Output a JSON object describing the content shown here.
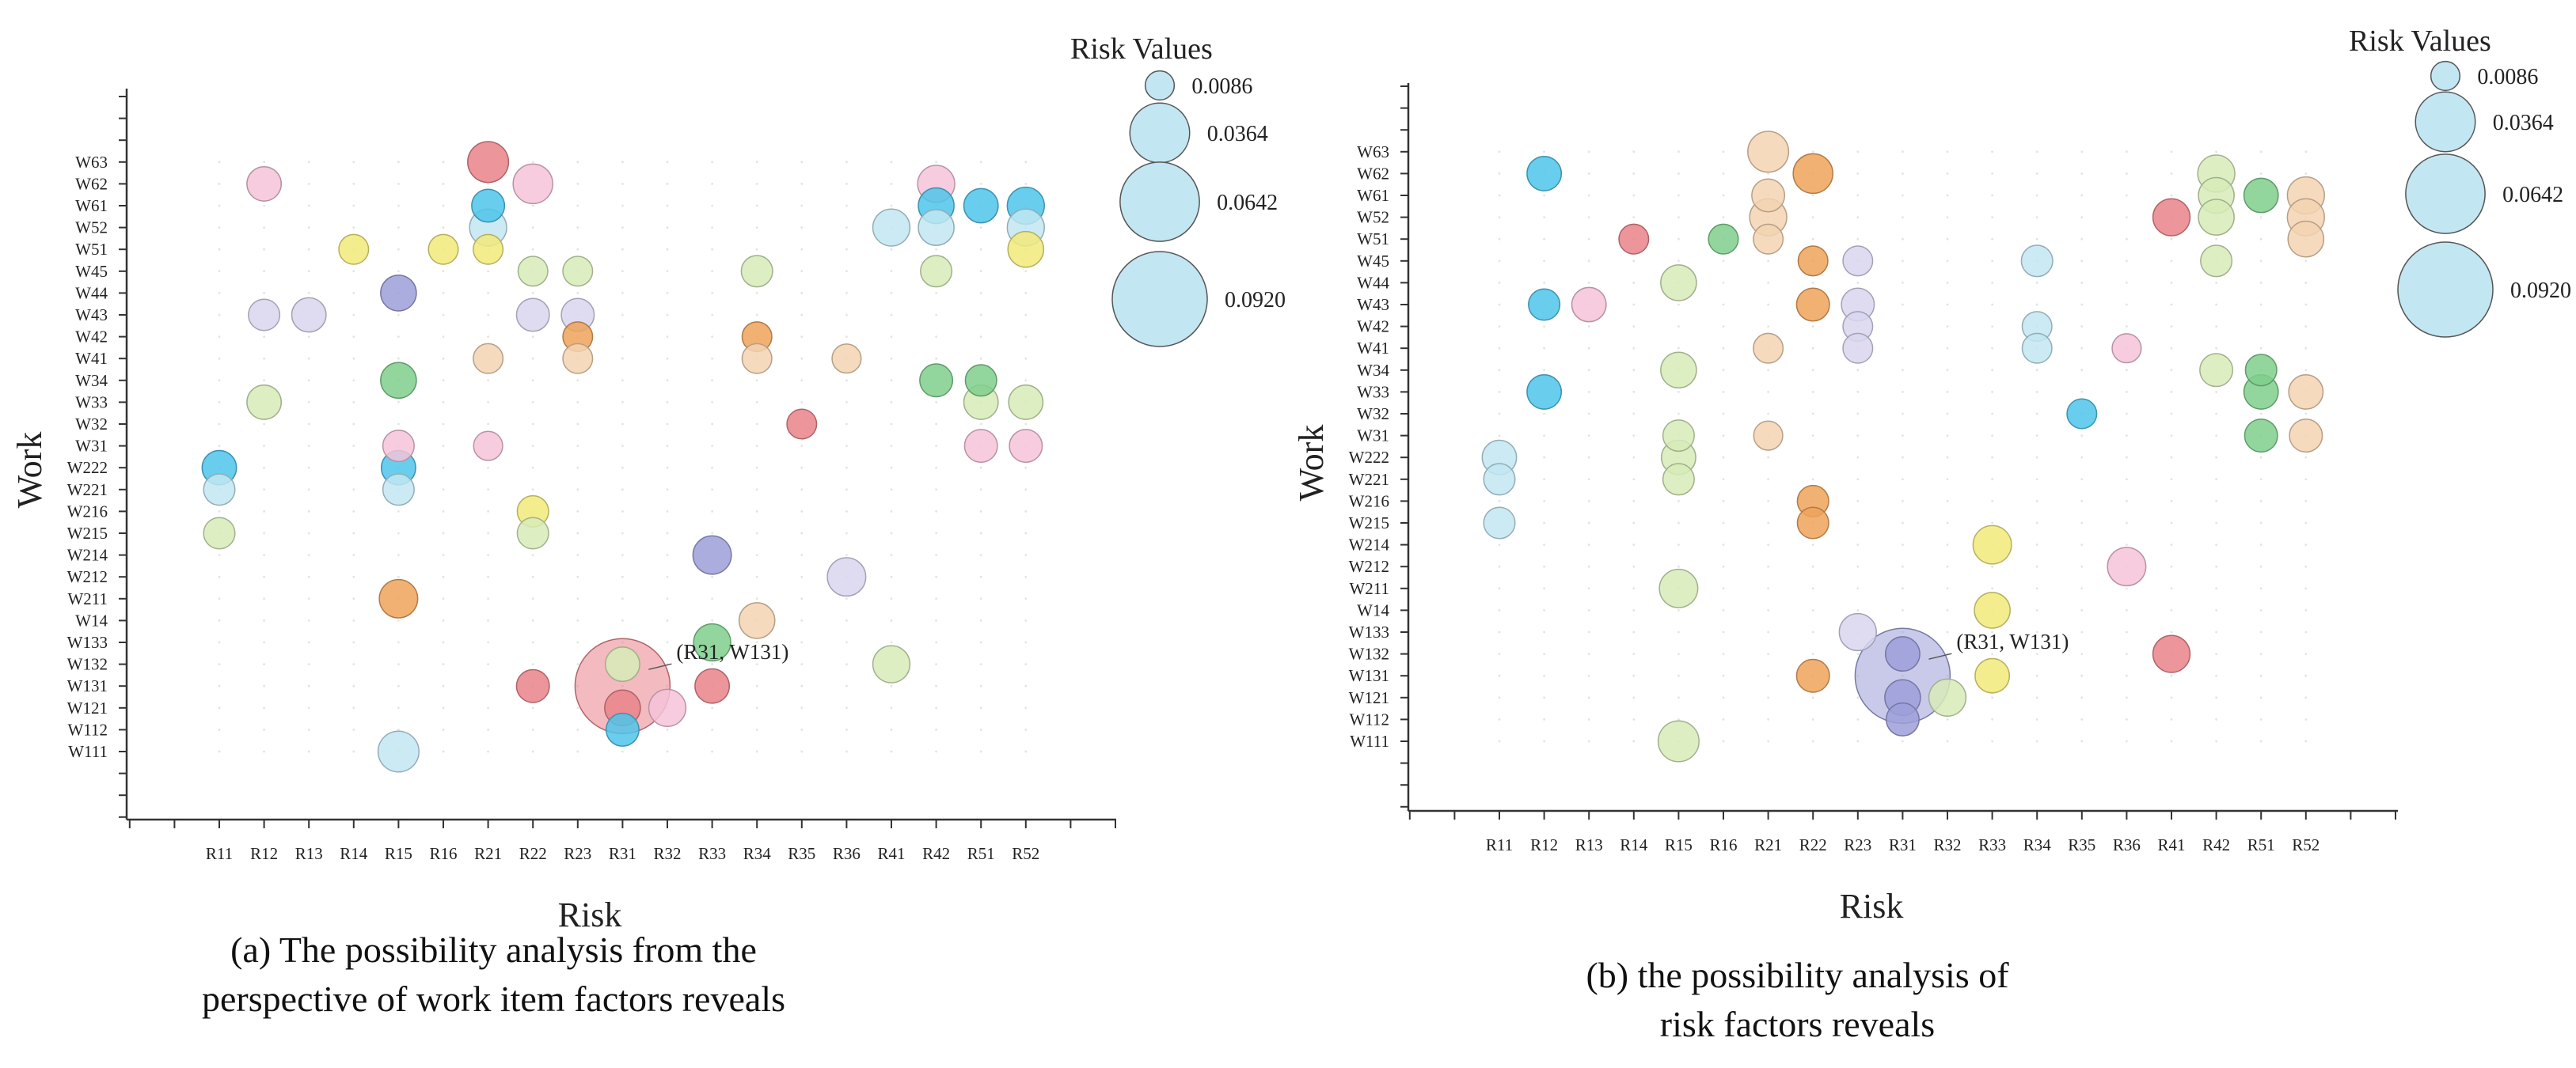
{
  "panels": [
    {
      "id": "a",
      "caption": {
        "line1": "(a) The possibility analysis from the",
        "line2": "perspective of work item factors reveals"
      },
      "annotation": "(R31, W131)"
    },
    {
      "id": "b",
      "caption": {
        "line1": "(b) the possibility analysis of",
        "line2": "risk factors reveals"
      },
      "annotation": "(R31, W131)"
    }
  ],
  "chart_data": [
    {
      "type": "scatter",
      "subtype": "bubble",
      "xlabel": "Risk",
      "ylabel": "Work",
      "legend_title": "Risk Values",
      "legend_sizes": [
        0.0086,
        0.0364,
        0.0642,
        0.092
      ],
      "legend_position": "top-right",
      "grid": false,
      "x_categories": [
        "R11",
        "R12",
        "R13",
        "R14",
        "R15",
        "R16",
        "R21",
        "R22",
        "R23",
        "R31",
        "R32",
        "R33",
        "R34",
        "R35",
        "R36",
        "R41",
        "R42",
        "R51",
        "R52"
      ],
      "y_categories": [
        "W111",
        "W112",
        "W121",
        "W131",
        "W132",
        "W133",
        "W14",
        "W211",
        "W212",
        "W214",
        "W215",
        "W216",
        "W221",
        "W222",
        "W31",
        "W32",
        "W33",
        "W34",
        "W41",
        "W42",
        "W43",
        "W44",
        "W45",
        "W51",
        "W52",
        "W61",
        "W62",
        "W63"
      ],
      "colors": {
        "red": "#e9828a",
        "green": "#7fcf8c",
        "lightgreen": "#d7ebb9",
        "blue": "#4fc4ea",
        "lightblue": "#c2e6f2",
        "purple": "#9d9fd9",
        "lavender": "#d9d6f0",
        "orange": "#eda35b",
        "peach": "#f3d4b2",
        "yellow": "#f2ea7a",
        "pink": "#f5c3d8"
      },
      "points": [
        {
          "x": "R11",
          "y": "W222",
          "v": 0.012,
          "c": "blue"
        },
        {
          "x": "R11",
          "y": "W221",
          "v": 0.01,
          "c": "lightblue"
        },
        {
          "x": "R11",
          "y": "W215",
          "v": 0.01,
          "c": "lightgreen"
        },
        {
          "x": "R12",
          "y": "W62",
          "v": 0.012,
          "c": "pink"
        },
        {
          "x": "R12",
          "y": "W43",
          "v": 0.01,
          "c": "lavender"
        },
        {
          "x": "R12",
          "y": "W33",
          "v": 0.012,
          "c": "lightgreen"
        },
        {
          "x": "R13",
          "y": "W43",
          "v": 0.012,
          "c": "lavender"
        },
        {
          "x": "R14",
          "y": "W51",
          "v": 0.009,
          "c": "yellow"
        },
        {
          "x": "R15",
          "y": "W44",
          "v": 0.013,
          "c": "purple"
        },
        {
          "x": "R15",
          "y": "W34",
          "v": 0.013,
          "c": "green"
        },
        {
          "x": "R15",
          "y": "W31",
          "v": 0.01,
          "c": "pink"
        },
        {
          "x": "R15",
          "y": "W222",
          "v": 0.012,
          "c": "blue"
        },
        {
          "x": "R15",
          "y": "W221",
          "v": 0.01,
          "c": "lightblue"
        },
        {
          "x": "R15",
          "y": "W211",
          "v": 0.015,
          "c": "orange"
        },
        {
          "x": "R15",
          "y": "W111",
          "v": 0.017,
          "c": "lightblue"
        },
        {
          "x": "R16",
          "y": "W51",
          "v": 0.009,
          "c": "yellow"
        },
        {
          "x": "R21",
          "y": "W63",
          "v": 0.017,
          "c": "red"
        },
        {
          "x": "R21",
          "y": "W61",
          "v": 0.011,
          "c": "blue"
        },
        {
          "x": "R21",
          "y": "W52",
          "v": 0.014,
          "c": "lightblue"
        },
        {
          "x": "R21",
          "y": "W51",
          "v": 0.009,
          "c": "yellow"
        },
        {
          "x": "R21",
          "y": "W41",
          "v": 0.009,
          "c": "peach"
        },
        {
          "x": "R21",
          "y": "W31",
          "v": 0.0086,
          "c": "pink"
        },
        {
          "x": "R22",
          "y": "W62",
          "v": 0.016,
          "c": "pink"
        },
        {
          "x": "R22",
          "y": "W45",
          "v": 0.009,
          "c": "lightgreen"
        },
        {
          "x": "R22",
          "y": "W43",
          "v": 0.011,
          "c": "lavender"
        },
        {
          "x": "R22",
          "y": "W216",
          "v": 0.01,
          "c": "yellow"
        },
        {
          "x": "R22",
          "y": "W215",
          "v": 0.01,
          "c": "lightgreen"
        },
        {
          "x": "R22",
          "y": "W131",
          "v": 0.011,
          "c": "red"
        },
        {
          "x": "R23",
          "y": "W45",
          "v": 0.009,
          "c": "lightgreen"
        },
        {
          "x": "R23",
          "y": "W43",
          "v": 0.011,
          "c": "lavender"
        },
        {
          "x": "R23",
          "y": "W42",
          "v": 0.009,
          "c": "orange"
        },
        {
          "x": "R23",
          "y": "W41",
          "v": 0.009,
          "c": "peach"
        },
        {
          "x": "R31",
          "y": "W131",
          "v": 0.092,
          "c": "red"
        },
        {
          "x": "R31",
          "y": "W132",
          "v": 0.012,
          "c": "lightgreen"
        },
        {
          "x": "R31",
          "y": "W121",
          "v": 0.013,
          "c": "red"
        },
        {
          "x": "R31",
          "y": "W112",
          "v": 0.011,
          "c": "blue"
        },
        {
          "x": "R32",
          "y": "W121",
          "v": 0.014,
          "c": "pink"
        },
        {
          "x": "R33",
          "y": "W214",
          "v": 0.015,
          "c": "purple"
        },
        {
          "x": "R33",
          "y": "W133",
          "v": 0.014,
          "c": "green"
        },
        {
          "x": "R33",
          "y": "W131",
          "v": 0.012,
          "c": "red"
        },
        {
          "x": "R34",
          "y": "W45",
          "v": 0.01,
          "c": "lightgreen"
        },
        {
          "x": "R34",
          "y": "W42",
          "v": 0.009,
          "c": "orange"
        },
        {
          "x": "R34",
          "y": "W41",
          "v": 0.009,
          "c": "peach"
        },
        {
          "x": "R34",
          "y": "W14",
          "v": 0.013,
          "c": "peach"
        },
        {
          "x": "R35",
          "y": "W32",
          "v": 0.009,
          "c": "red"
        },
        {
          "x": "R36",
          "y": "W41",
          "v": 0.0086,
          "c": "peach"
        },
        {
          "x": "R36",
          "y": "W212",
          "v": 0.015,
          "c": "lavender"
        },
        {
          "x": "R41",
          "y": "W52",
          "v": 0.014,
          "c": "lightblue"
        },
        {
          "x": "R41",
          "y": "W132",
          "v": 0.014,
          "c": "lightgreen"
        },
        {
          "x": "R42",
          "y": "W62",
          "v": 0.014,
          "c": "pink"
        },
        {
          "x": "R42",
          "y": "W61",
          "v": 0.013,
          "c": "blue"
        },
        {
          "x": "R42",
          "y": "W52",
          "v": 0.013,
          "c": "lightblue"
        },
        {
          "x": "R42",
          "y": "W45",
          "v": 0.01,
          "c": "lightgreen"
        },
        {
          "x": "R42",
          "y": "W34",
          "v": 0.011,
          "c": "green"
        },
        {
          "x": "R51",
          "y": "W61",
          "v": 0.012,
          "c": "blue"
        },
        {
          "x": "R51",
          "y": "W34",
          "v": 0.01,
          "c": "green"
        },
        {
          "x": "R51",
          "y": "W33",
          "v": 0.012,
          "c": "lightgreen"
        },
        {
          "x": "R51",
          "y": "W31",
          "v": 0.011,
          "c": "pink"
        },
        {
          "x": "R52",
          "y": "W61",
          "v": 0.014,
          "c": "blue"
        },
        {
          "x": "R52",
          "y": "W52",
          "v": 0.014,
          "c": "lightblue"
        },
        {
          "x": "R52",
          "y": "W51",
          "v": 0.013,
          "c": "yellow"
        },
        {
          "x": "R52",
          "y": "W33",
          "v": 0.012,
          "c": "lightgreen"
        },
        {
          "x": "R52",
          "y": "W31",
          "v": 0.011,
          "c": "pink"
        }
      ]
    },
    {
      "type": "scatter",
      "subtype": "bubble",
      "xlabel": "Risk",
      "ylabel": "Work",
      "legend_title": "Risk Values",
      "legend_sizes": [
        0.0086,
        0.0364,
        0.0642,
        0.092
      ],
      "legend_position": "top-right",
      "grid": false,
      "x_categories": [
        "R11",
        "R12",
        "R13",
        "R14",
        "R15",
        "R16",
        "R21",
        "R22",
        "R23",
        "R31",
        "R32",
        "R33",
        "R34",
        "R35",
        "R36",
        "R41",
        "R42",
        "R51",
        "R52"
      ],
      "y_categories": [
        "W111",
        "W112",
        "W121",
        "W131",
        "W132",
        "W133",
        "W14",
        "W211",
        "W212",
        "W214",
        "W215",
        "W216",
        "W221",
        "W222",
        "W31",
        "W32",
        "W33",
        "W34",
        "W41",
        "W42",
        "W43",
        "W44",
        "W45",
        "W51",
        "W52",
        "W61",
        "W62",
        "W63"
      ],
      "colors": {
        "red": "#e9828a",
        "green": "#7fcf8c",
        "lightgreen": "#d7ebb9",
        "blue": "#4fc4ea",
        "lightblue": "#c2e6f2",
        "purple": "#9d9fd9",
        "lavender": "#d9d6f0",
        "orange": "#eda35b",
        "peach": "#f3d4b2",
        "yellow": "#f2ea7a",
        "pink": "#f5c3d8"
      },
      "points": [
        {
          "x": "R11",
          "y": "W222",
          "v": 0.012,
          "c": "lightblue"
        },
        {
          "x": "R11",
          "y": "W221",
          "v": 0.01,
          "c": "lightblue"
        },
        {
          "x": "R11",
          "y": "W215",
          "v": 0.01,
          "c": "lightblue"
        },
        {
          "x": "R12",
          "y": "W62",
          "v": 0.012,
          "c": "blue"
        },
        {
          "x": "R12",
          "y": "W43",
          "v": 0.01,
          "c": "blue"
        },
        {
          "x": "R12",
          "y": "W33",
          "v": 0.012,
          "c": "blue"
        },
        {
          "x": "R13",
          "y": "W43",
          "v": 0.012,
          "c": "pink"
        },
        {
          "x": "R14",
          "y": "W51",
          "v": 0.009,
          "c": "red"
        },
        {
          "x": "R15",
          "y": "W44",
          "v": 0.013,
          "c": "lightgreen"
        },
        {
          "x": "R15",
          "y": "W34",
          "v": 0.013,
          "c": "lightgreen"
        },
        {
          "x": "R15",
          "y": "W31",
          "v": 0.01,
          "c": "lightgreen"
        },
        {
          "x": "R15",
          "y": "W222",
          "v": 0.012,
          "c": "lightgreen"
        },
        {
          "x": "R15",
          "y": "W221",
          "v": 0.01,
          "c": "lightgreen"
        },
        {
          "x": "R15",
          "y": "W211",
          "v": 0.015,
          "c": "lightgreen"
        },
        {
          "x": "R15",
          "y": "W111",
          "v": 0.017,
          "c": "lightgreen"
        },
        {
          "x": "R16",
          "y": "W51",
          "v": 0.009,
          "c": "green"
        },
        {
          "x": "R21",
          "y": "W63",
          "v": 0.017,
          "c": "peach"
        },
        {
          "x": "R21",
          "y": "W61",
          "v": 0.011,
          "c": "peach"
        },
        {
          "x": "R21",
          "y": "W52",
          "v": 0.014,
          "c": "peach"
        },
        {
          "x": "R21",
          "y": "W51",
          "v": 0.009,
          "c": "peach"
        },
        {
          "x": "R21",
          "y": "W41",
          "v": 0.009,
          "c": "peach"
        },
        {
          "x": "R21",
          "y": "W31",
          "v": 0.0086,
          "c": "peach"
        },
        {
          "x": "R22",
          "y": "W62",
          "v": 0.016,
          "c": "orange"
        },
        {
          "x": "R22",
          "y": "W45",
          "v": 0.009,
          "c": "orange"
        },
        {
          "x": "R22",
          "y": "W43",
          "v": 0.011,
          "c": "orange"
        },
        {
          "x": "R22",
          "y": "W216",
          "v": 0.01,
          "c": "orange"
        },
        {
          "x": "R22",
          "y": "W215",
          "v": 0.01,
          "c": "orange"
        },
        {
          "x": "R22",
          "y": "W131",
          "v": 0.011,
          "c": "orange"
        },
        {
          "x": "R23",
          "y": "W45",
          "v": 0.009,
          "c": "lavender"
        },
        {
          "x": "R23",
          "y": "W43",
          "v": 0.011,
          "c": "lavender"
        },
        {
          "x": "R23",
          "y": "W42",
          "v": 0.009,
          "c": "lavender"
        },
        {
          "x": "R23",
          "y": "W41",
          "v": 0.009,
          "c": "lavender"
        },
        {
          "x": "R23",
          "y": "W133",
          "v": 0.014,
          "c": "lavender"
        },
        {
          "x": "R31",
          "y": "W131",
          "v": 0.092,
          "c": "purple"
        },
        {
          "x": "R31",
          "y": "W132",
          "v": 0.012,
          "c": "purple"
        },
        {
          "x": "R31",
          "y": "W121",
          "v": 0.013,
          "c": "purple"
        },
        {
          "x": "R31",
          "y": "W112",
          "v": 0.011,
          "c": "purple"
        },
        {
          "x": "R32",
          "y": "W121",
          "v": 0.014,
          "c": "lightgreen"
        },
        {
          "x": "R33",
          "y": "W214",
          "v": 0.015,
          "c": "yellow"
        },
        {
          "x": "R33",
          "y": "W14",
          "v": 0.013,
          "c": "yellow"
        },
        {
          "x": "R33",
          "y": "W131",
          "v": 0.012,
          "c": "yellow"
        },
        {
          "x": "R34",
          "y": "W45",
          "v": 0.01,
          "c": "lightblue"
        },
        {
          "x": "R34",
          "y": "W42",
          "v": 0.009,
          "c": "lightblue"
        },
        {
          "x": "R34",
          "y": "W41",
          "v": 0.009,
          "c": "lightblue"
        },
        {
          "x": "R35",
          "y": "W32",
          "v": 0.009,
          "c": "blue"
        },
        {
          "x": "R36",
          "y": "W41",
          "v": 0.0086,
          "c": "pink"
        },
        {
          "x": "R36",
          "y": "W212",
          "v": 0.015,
          "c": "pink"
        },
        {
          "x": "R41",
          "y": "W52",
          "v": 0.014,
          "c": "red"
        },
        {
          "x": "R41",
          "y": "W132",
          "v": 0.014,
          "c": "red"
        },
        {
          "x": "R42",
          "y": "W62",
          "v": 0.014,
          "c": "lightgreen"
        },
        {
          "x": "R42",
          "y": "W61",
          "v": 0.013,
          "c": "lightgreen"
        },
        {
          "x": "R42",
          "y": "W52",
          "v": 0.013,
          "c": "lightgreen"
        },
        {
          "x": "R42",
          "y": "W45",
          "v": 0.01,
          "c": "lightgreen"
        },
        {
          "x": "R42",
          "y": "W34",
          "v": 0.011,
          "c": "lightgreen"
        },
        {
          "x": "R51",
          "y": "W61",
          "v": 0.012,
          "c": "green"
        },
        {
          "x": "R51",
          "y": "W34",
          "v": 0.01,
          "c": "green"
        },
        {
          "x": "R51",
          "y": "W33",
          "v": 0.012,
          "c": "green"
        },
        {
          "x": "R51",
          "y": "W31",
          "v": 0.011,
          "c": "green"
        },
        {
          "x": "R52",
          "y": "W61",
          "v": 0.014,
          "c": "peach"
        },
        {
          "x": "R52",
          "y": "W52",
          "v": 0.014,
          "c": "peach"
        },
        {
          "x": "R52",
          "y": "W51",
          "v": 0.013,
          "c": "peach"
        },
        {
          "x": "R52",
          "y": "W33",
          "v": 0.012,
          "c": "peach"
        },
        {
          "x": "R52",
          "y": "W31",
          "v": 0.011,
          "c": "peach"
        }
      ]
    }
  ]
}
